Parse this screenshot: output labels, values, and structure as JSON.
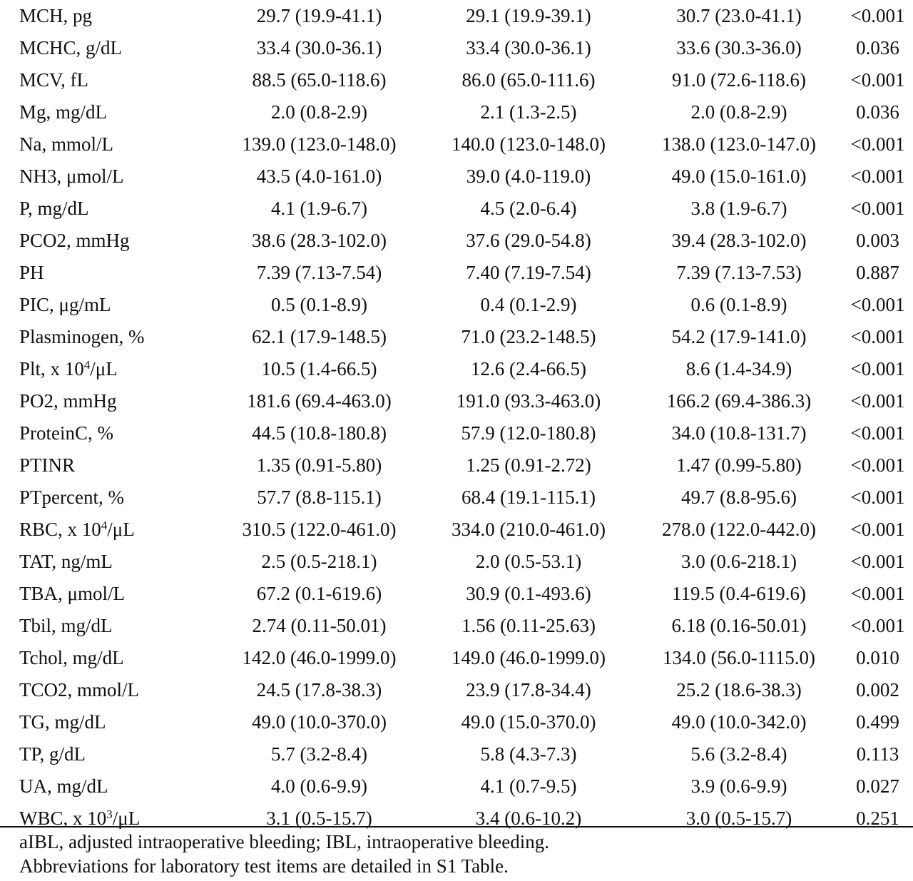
{
  "rows": [
    {
      "item": "MCH, pg",
      "all": "29.7 (19.9-41.1)",
      "g1": "29.1 (19.9-39.1)",
      "g2": "30.7 (23.0-41.1)",
      "p": "<0.001"
    },
    {
      "item": "MCHC, g/dL",
      "all": "33.4 (30.0-36.1)",
      "g1": "33.4 (30.0-36.1)",
      "g2": "33.6 (30.3-36.0)",
      "p": "0.036"
    },
    {
      "item": "MCV, fL",
      "all": "88.5 (65.0-118.6)",
      "g1": "86.0 (65.0-111.6)",
      "g2": "91.0 (72.6-118.6)",
      "p": "<0.001"
    },
    {
      "item": "Mg, mg/dL",
      "all": "2.0 (0.8-2.9)",
      "g1": "2.1 (1.3-2.5)",
      "g2": "2.0 (0.8-2.9)",
      "p": "0.036"
    },
    {
      "item": "Na, mmol/L",
      "all": "139.0 (123.0-148.0)",
      "g1": "140.0 (123.0-148.0)",
      "g2": "138.0 (123.0-147.0)",
      "p": "<0.001"
    },
    {
      "item": "NH3, μmol/L",
      "all": "43.5 (4.0-161.0)",
      "g1": "39.0 (4.0-119.0)",
      "g2": "49.0 (15.0-161.0)",
      "p": "<0.001"
    },
    {
      "item": "P, mg/dL",
      "all": "4.1 (1.9-6.7)",
      "g1": "4.5 (2.0-6.4)",
      "g2": "3.8 (1.9-6.7)",
      "p": "<0.001"
    },
    {
      "item": "PCO2, mmHg",
      "all": "38.6 (28.3-102.0)",
      "g1": "37.6 (29.0-54.8)",
      "g2": "39.4 (28.3-102.0)",
      "p": "0.003"
    },
    {
      "item": "PH",
      "all": "7.39 (7.13-7.54)",
      "g1": "7.40 (7.19-7.54)",
      "g2": "7.39 (7.13-7.53)",
      "p": "0.887"
    },
    {
      "item": "PIC, μg/mL",
      "all": "0.5 (0.1-8.9)",
      "g1": "0.4 (0.1-2.9)",
      "g2": "0.6 (0.1-8.9)",
      "p": "<0.001"
    },
    {
      "item": "Plasminogen, %",
      "all": "62.1 (17.9-148.5)",
      "g1": "71.0 (23.2-148.5)",
      "g2": "54.2 (17.9-141.0)",
      "p": "<0.001"
    },
    {
      "item": "Plt, x 10",
      "item_sup": "4",
      "item_suffix": "/μL",
      "all": "10.5 (1.4-66.5)",
      "g1": "12.6 (2.4-66.5)",
      "g2": "8.6 (1.4-34.9)",
      "p": "<0.001"
    },
    {
      "item": "PO2, mmHg",
      "all": "181.6 (69.4-463.0)",
      "g1": "191.0 (93.3-463.0)",
      "g2": "166.2 (69.4-386.3)",
      "p": "<0.001"
    },
    {
      "item": "ProteinC, %",
      "all": "44.5 (10.8-180.8)",
      "g1": "57.9 (12.0-180.8)",
      "g2": "34.0 (10.8-131.7)",
      "p": "<0.001"
    },
    {
      "item": "PTINR",
      "all": "1.35 (0.91-5.80)",
      "g1": "1.25 (0.91-2.72)",
      "g2": "1.47 (0.99-5.80)",
      "p": "<0.001"
    },
    {
      "item": "PTpercent, %",
      "all": "57.7 (8.8-115.1)",
      "g1": "68.4 (19.1-115.1)",
      "g2": "49.7 (8.8-95.6)",
      "p": "<0.001"
    },
    {
      "item": "RBC, x 10",
      "item_sup": "4",
      "item_suffix": "/μL",
      "all": "310.5 (122.0-461.0)",
      "g1": "334.0 (210.0-461.0)",
      "g2": "278.0 (122.0-442.0)",
      "p": "<0.001"
    },
    {
      "item": "TAT, ng/mL",
      "all": "2.5 (0.5-218.1)",
      "g1": "2.0 (0.5-53.1)",
      "g2": "3.0 (0.6-218.1)",
      "p": "<0.001"
    },
    {
      "item": "TBA, μmol/L",
      "all": "67.2 (0.1-619.6)",
      "g1": "30.9 (0.1-493.6)",
      "g2": "119.5 (0.4-619.6)",
      "p": "<0.001"
    },
    {
      "item": "Tbil, mg/dL",
      "all": "2.74 (0.11-50.01)",
      "g1": "1.56 (0.11-25.63)",
      "g2": "6.18 (0.16-50.01)",
      "p": "<0.001"
    },
    {
      "item": "Tchol, mg/dL",
      "all": "142.0 (46.0-1999.0)",
      "g1": "149.0 (46.0-1999.0)",
      "g2": "134.0 (56.0-1115.0)",
      "p": "0.010"
    },
    {
      "item": "TCO2, mmol/L",
      "all": "24.5 (17.8-38.3)",
      "g1": "23.9 (17.8-34.4)",
      "g2": "25.2 (18.6-38.3)",
      "p": "0.002"
    },
    {
      "item": "TG, mg/dL",
      "all": "49.0 (10.0-370.0)",
      "g1": "49.0 (15.0-370.0)",
      "g2": "49.0 (10.0-342.0)",
      "p": "0.499"
    },
    {
      "item": "TP, g/dL",
      "all": "5.7 (3.2-8.4)",
      "g1": "5.8 (4.3-7.3)",
      "g2": "5.6 (3.2-8.4)",
      "p": "0.113"
    },
    {
      "item": "UA, mg/dL",
      "all": "4.0 (0.6-9.9)",
      "g1": "4.1 (0.7-9.5)",
      "g2": "3.9 (0.6-9.9)",
      "p": "0.027"
    },
    {
      "item": "WBC, x 10",
      "item_sup": "3",
      "item_suffix": "/μL",
      "all": "3.1 (0.5-15.7)",
      "g1": "3.4 (0.6-10.2)",
      "g2": "3.0 (0.5-15.7)",
      "p": "0.251"
    }
  ],
  "footnotes": [
    "aIBL, adjusted intraoperative bleeding; IBL, intraoperative bleeding.",
    "Abbreviations for laboratory test items are detailed in S1 Table."
  ]
}
